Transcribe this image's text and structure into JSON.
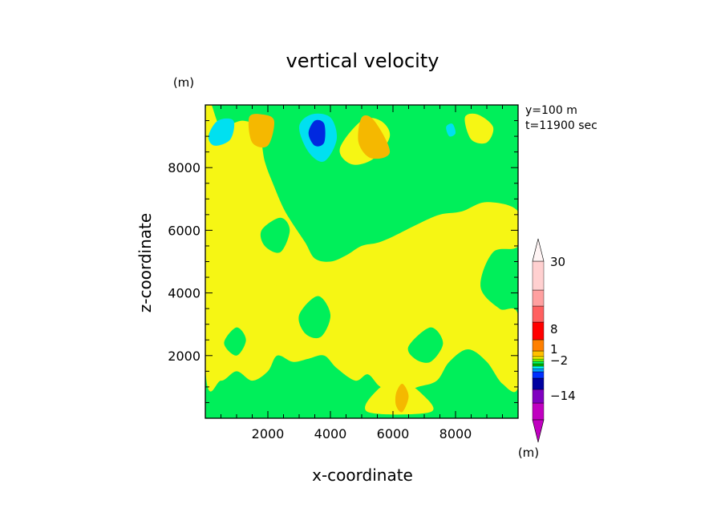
{
  "chart_data": {
    "type": "heatmap",
    "title": "vertical velocity",
    "xlabel": "x-coordinate",
    "ylabel": "z-coordinate",
    "x_unit": "(m)",
    "y_unit": "(m)",
    "colorbar_unit": "(m)",
    "xlim": [
      0,
      10000
    ],
    "ylim": [
      0,
      10000
    ],
    "x_ticks": [
      2000,
      4000,
      6000,
      8000
    ],
    "y_ticks": [
      2000,
      4000,
      6000,
      8000
    ],
    "x_tick_labels": [
      "2000",
      "4000",
      "6000",
      "8000"
    ],
    "y_tick_labels": [
      "2000",
      "4000",
      "6000",
      "8000"
    ],
    "annotations": [
      "y=100 m",
      "t=11900 sec"
    ],
    "colorbar_labels": [
      {
        "value": 30,
        "text": "30"
      },
      {
        "value": 8,
        "text": "8"
      },
      {
        "value": 1,
        "text": "1"
      },
      {
        "value": -2,
        "text": "−2"
      },
      {
        "value": -14,
        "text": "−14"
      }
    ],
    "colorbar_colors": [
      "#c000c0",
      "#8000c0",
      "#0000a0",
      "#0030ff",
      "#00a0ff",
      "#00ffff",
      "#00c000",
      "#00ff60",
      "#80ff00",
      "#ffff00",
      "#ffc000",
      "#ff8000",
      "#ff0000",
      "#ff6060",
      "#ffa0a0",
      "#ffd0d0"
    ],
    "colors": {
      "background_level": "#00ef5a",
      "positive_weak": "#f6f614",
      "positive_moderate": "#f5b800",
      "negative_weak": "#00e0f0",
      "negative_strong": "#0028e0"
    },
    "fields": [
      {
        "level": "positive_weak",
        "outline": [
          [
            0,
            9700
          ],
          [
            500,
            9300
          ],
          [
            1200,
            9500
          ],
          [
            1700,
            9200
          ],
          [
            1900,
            8200
          ],
          [
            2200,
            7400
          ],
          [
            2500,
            6700
          ],
          [
            2800,
            6200
          ],
          [
            3200,
            5600
          ],
          [
            3500,
            5100
          ],
          [
            4000,
            5000
          ],
          [
            4500,
            5200
          ],
          [
            5000,
            5500
          ],
          [
            5500,
            5600
          ],
          [
            6000,
            5800
          ],
          [
            6800,
            6200
          ],
          [
            7500,
            6500
          ],
          [
            8200,
            6600
          ],
          [
            9000,
            6900
          ],
          [
            10000,
            6600
          ],
          [
            10000,
            5500
          ],
          [
            9200,
            5300
          ],
          [
            8800,
            4200
          ],
          [
            9400,
            3500
          ],
          [
            10000,
            3300
          ],
          [
            10000,
            1000
          ],
          [
            9500,
            1100
          ],
          [
            9000,
            1800
          ],
          [
            8400,
            2200
          ],
          [
            7800,
            1800
          ],
          [
            7400,
            1200
          ],
          [
            6800,
            1000
          ],
          [
            6200,
            800
          ],
          [
            5600,
            1000
          ],
          [
            5200,
            1400
          ],
          [
            4800,
            1200
          ],
          [
            4200,
            1600
          ],
          [
            3800,
            2000
          ],
          [
            3300,
            1900
          ],
          [
            2800,
            1800
          ],
          [
            2300,
            2000
          ],
          [
            2000,
            1500
          ],
          [
            1500,
            1200
          ],
          [
            1000,
            1500
          ],
          [
            500,
            1200
          ],
          [
            0,
            1600
          ]
        ]
      },
      {
        "level": "positive_weak",
        "outline": [
          [
            1500,
            3200
          ],
          [
            2100,
            3000
          ],
          [
            2500,
            3500
          ],
          [
            2300,
            4200
          ],
          [
            1800,
            4300
          ],
          [
            1400,
            3900
          ]
        ]
      },
      {
        "level": "positive_weak",
        "outline": [
          [
            4300,
            8600
          ],
          [
            5000,
            9500
          ],
          [
            5600,
            9500
          ],
          [
            5900,
            9000
          ],
          [
            5400,
            8300
          ],
          [
            4700,
            8100
          ]
        ]
      },
      {
        "level": "positive_weak",
        "outline": [
          [
            8300,
            9600
          ],
          [
            8700,
            9700
          ],
          [
            9200,
            9300
          ],
          [
            9000,
            8800
          ],
          [
            8500,
            8900
          ]
        ]
      },
      {
        "level": "positive_weak",
        "outline": [
          [
            5200,
            200
          ],
          [
            5500,
            900
          ],
          [
            6200,
            1200
          ],
          [
            6900,
            800
          ],
          [
            7200,
            200
          ]
        ]
      },
      {
        "level": "background_level",
        "outline": [
          [
            1800,
            6000
          ],
          [
            2400,
            6400
          ],
          [
            2700,
            6000
          ],
          [
            2400,
            5300
          ],
          [
            1900,
            5500
          ]
        ]
      },
      {
        "level": "background_level",
        "outline": [
          [
            3000,
            3300
          ],
          [
            3600,
            3900
          ],
          [
            4000,
            3300
          ],
          [
            3700,
            2600
          ],
          [
            3200,
            2700
          ]
        ]
      },
      {
        "level": "background_level",
        "outline": [
          [
            6500,
            2300
          ],
          [
            7200,
            2900
          ],
          [
            7600,
            2400
          ],
          [
            7200,
            1800
          ],
          [
            6700,
            1900
          ]
        ]
      },
      {
        "level": "background_level",
        "outline": [
          [
            600,
            2400
          ],
          [
            1000,
            2900
          ],
          [
            1300,
            2500
          ],
          [
            1000,
            2000
          ]
        ]
      },
      {
        "level": "positive_moderate",
        "outline": [
          [
            1400,
            9600
          ],
          [
            1800,
            9700
          ],
          [
            2200,
            9500
          ],
          [
            2000,
            8700
          ],
          [
            1500,
            8800
          ]
        ]
      },
      {
        "level": "positive_moderate",
        "outline": [
          [
            5000,
            9600
          ],
          [
            5400,
            9500
          ],
          [
            5900,
            8500
          ],
          [
            5300,
            8300
          ],
          [
            4900,
            8800
          ]
        ]
      },
      {
        "level": "positive_moderate",
        "outline": [
          [
            6100,
            800
          ],
          [
            6300,
            1100
          ],
          [
            6500,
            700
          ],
          [
            6300,
            200
          ],
          [
            6100,
            400
          ]
        ]
      },
      {
        "level": "negative_weak",
        "outline": [
          [
            100,
            9000
          ],
          [
            400,
            9500
          ],
          [
            900,
            9500
          ],
          [
            800,
            8900
          ],
          [
            300,
            8700
          ]
        ]
      },
      {
        "level": "negative_weak",
        "outline": [
          [
            3000,
            9300
          ],
          [
            3400,
            9700
          ],
          [
            4000,
            9600
          ],
          [
            4200,
            8900
          ],
          [
            3800,
            8200
          ],
          [
            3300,
            8500
          ]
        ]
      },
      {
        "level": "negative_weak",
        "outline": [
          [
            7700,
            9300
          ],
          [
            7900,
            9400
          ],
          [
            8000,
            9100
          ],
          [
            7800,
            9000
          ]
        ]
      },
      {
        "level": "negative_strong",
        "outline": [
          [
            3300,
            9100
          ],
          [
            3500,
            9500
          ],
          [
            3800,
            9400
          ],
          [
            3800,
            8800
          ],
          [
            3500,
            8700
          ]
        ]
      }
    ]
  }
}
